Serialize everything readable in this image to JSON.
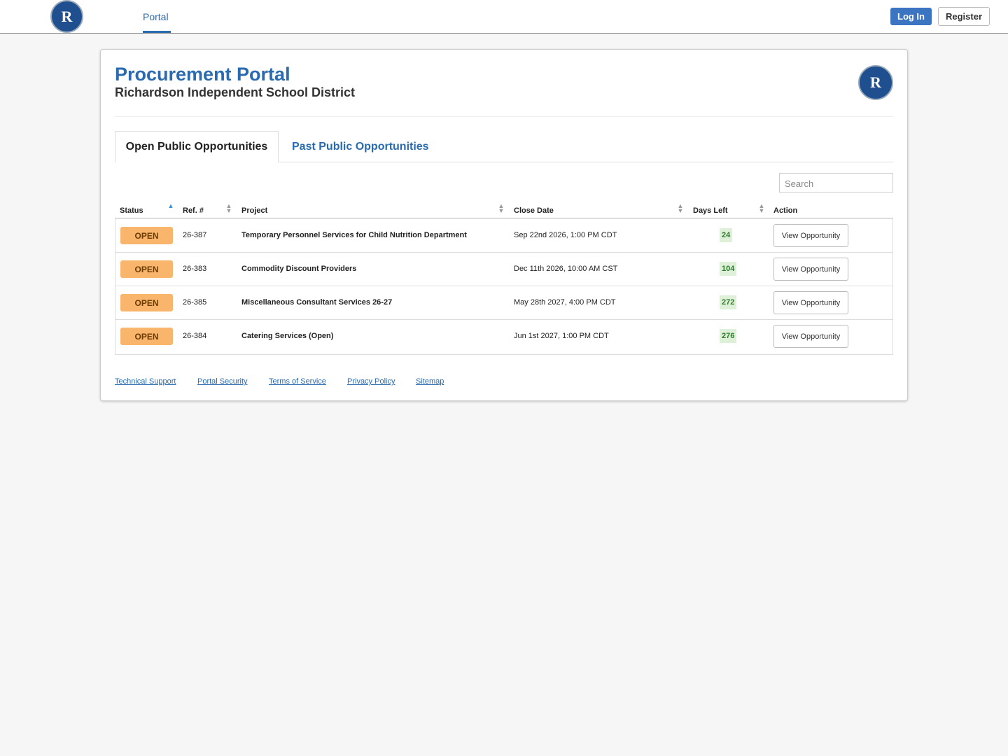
{
  "nav": {
    "logo_letter": "R",
    "portal": "Portal",
    "login": "Log In",
    "register": "Register"
  },
  "header": {
    "title": "Procurement Portal",
    "subtitle": "Richardson Independent School District"
  },
  "tabs": [
    "Open Public Opportunities",
    "Past Public Opportunities"
  ],
  "search": "Search",
  "table": {
    "columns": [
      "Status",
      "Ref. #",
      "Project",
      "Close Date",
      "Days Left",
      "Action"
    ],
    "rows": [
      [
        "OPEN",
        "26-387",
        "Temporary Personnel Services for Child Nutrition Department",
        "Sep 22nd 2026, 1:00 PM CDT",
        24,
        "View Opportunity"
      ],
      [
        "OPEN",
        "26-383",
        "Commodity Discount Providers",
        "Dec 11th 2026, 10:00 AM CST",
        104,
        "View Opportunity"
      ],
      [
        "OPEN",
        "26-385",
        "Miscellaneous Consultant Services 26-27",
        "May 28th 2027, 4:00 PM CDT",
        272,
        "View Opportunity"
      ],
      [
        "OPEN",
        "26-384",
        "Catering Services (Open)",
        "Jun 1st 2027, 1:00 PM CDT",
        276,
        "View Opportunity"
      ]
    ]
  },
  "footer": [
    "Technical Support",
    "Portal Security",
    "Terms of Service",
    "Privacy Policy",
    "Sitemap"
  ]
}
